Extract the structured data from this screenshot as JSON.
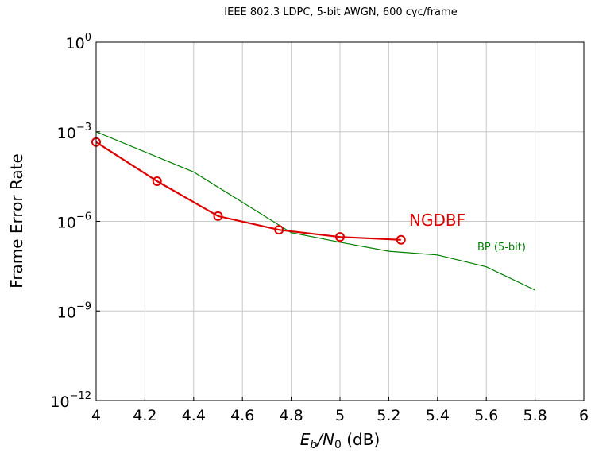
{
  "chart_data": {
    "type": "line",
    "title": "IEEE 802.3 LDPC, 5-bit AWGN, 600 cyc/frame",
    "xlabel": {
      "main": "E",
      "sub1": "b",
      "slash": "/N",
      "sub2": "0",
      "unit": " (dB)"
    },
    "ylabel": "Frame Error Rate",
    "xlim": [
      4,
      6
    ],
    "ylim_log10": [
      -12,
      0
    ],
    "y_scale": "log",
    "grid": true,
    "x_ticks": [
      4,
      4.2,
      4.4,
      4.6,
      4.8,
      5,
      5.2,
      5.4,
      5.6,
      5.8,
      6
    ],
    "x_tick_labels": [
      "4",
      "4.2",
      "4.4",
      "4.6",
      "4.8",
      "5",
      "5.2",
      "5.4",
      "5.6",
      "5.8",
      "6"
    ],
    "y_ticks": [
      {
        "base": "10",
        "exp": "0",
        "log10": 0
      },
      {
        "base": "10",
        "exp": "−3",
        "log10": -3
      },
      {
        "base": "10",
        "exp": "−6",
        "log10": -6
      },
      {
        "base": "10",
        "exp": "−9",
        "log10": -9
      },
      {
        "base": "10",
        "exp": "−12",
        "log10": -12
      }
    ],
    "series": [
      {
        "name": "BP (5-bit)",
        "color": "#008000",
        "marker": "none",
        "x": [
          4.0,
          4.4,
          4.8,
          5.0,
          5.2,
          5.4,
          5.6,
          5.8
        ],
        "y": [
          0.001,
          4.5e-05,
          4.2e-07,
          2e-07,
          1e-07,
          7.5e-08,
          3e-08,
          5e-09
        ]
      },
      {
        "name": "NGDBF",
        "color": "#dd0000",
        "marker": "circle",
        "x": [
          4.0,
          4.25,
          4.5,
          4.75,
          5.0,
          5.25
        ],
        "y": [
          0.00045,
          2.2e-05,
          1.5e-06,
          5.2e-07,
          3e-07,
          2.4e-07
        ]
      }
    ]
  }
}
